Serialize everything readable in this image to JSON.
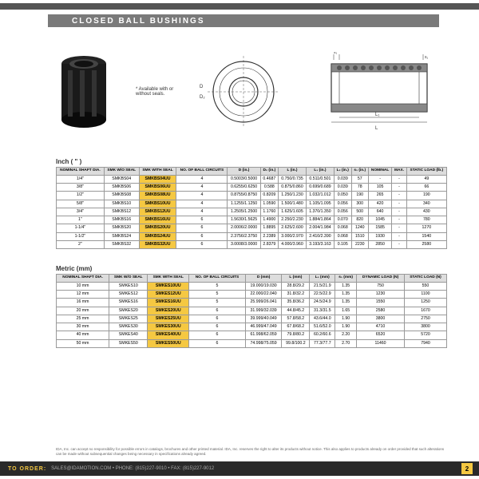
{
  "header": {
    "title": "CLOSED BALL BUSHINGS"
  },
  "note": "* Available with or without seals.",
  "section1": {
    "label": "Inch ( \" )"
  },
  "section2": {
    "label": "Metric (mm)"
  },
  "table1": {
    "headers": [
      "NOMINAL SHAFT DIA.",
      "SMK W/O SEAL",
      "SMK WITH SEAL",
      "NO. OF BALL CIRCUITS",
      "D (in.)",
      "D₂ (in.)",
      "L (in.)",
      "L₁ (in.)",
      "L₂ (in.)",
      "s₁ (in.)",
      "NOMINAL",
      "MAX.",
      "STATIC LOAD (lb.)"
    ],
    "rows": [
      [
        "1/4\"",
        "SMKBS04",
        "SMKBS04UU",
        "4",
        "0.5003/0.5000",
        "0.4687",
        "0.750/0.735",
        "0.511/0.501",
        "0.039",
        "57",
        "-",
        "-",
        "49"
      ],
      [
        "3/8\"",
        "SMKBS06",
        "SMKBS06UU",
        "4",
        "0.6255/0.6250",
        "0.588",
        "0.875/0.860",
        "0.699/0.689",
        "0.039",
        "78",
        "105",
        "-",
        "66"
      ],
      [
        "1/2\"",
        "SMKBS08",
        "SMKBS08UU",
        "4",
        "0.8755/0.8750",
        "0.8209",
        "1.250/1.230",
        "1.032/1.012",
        "0.050",
        "190",
        "265",
        "-",
        "190"
      ],
      [
        "5/8\"",
        "SMKBS10",
        "SMKBS10UU",
        "4",
        "1.1255/1.1250",
        "1.0590",
        "1.500/1.480",
        "1.105/1.095",
        "0.056",
        "300",
        "420",
        "-",
        "340"
      ],
      [
        "3/4\"",
        "SMKBS12",
        "SMKBS12UU",
        "4",
        "1.2505/1.2500",
        "1.1760",
        "1.625/1.605",
        "1.370/1.350",
        "0.056",
        "500",
        "640",
        "-",
        "430"
      ],
      [
        "1\"",
        "SMKBS16",
        "SMKBS16UU",
        "6",
        "1.5630/1.5625",
        "1.4900",
        "2.250/2.230",
        "1.884/1.864",
        "0.070",
        "820",
        "1045",
        "-",
        "780"
      ],
      [
        "1-1/4\"",
        "SMKBS20",
        "SMKBS20UU",
        "6",
        "2.0006/2.0000",
        "1.8895",
        "2.625/2.600",
        "2.004/1.984",
        "0.068",
        "1240",
        "1585",
        "-",
        "1270"
      ],
      [
        "1-1/2\"",
        "SMKBS24",
        "SMKBS24UU",
        "6",
        "2.3756/2.3750",
        "2.2389",
        "3.000/2.970",
        "2.410/2.390",
        "0.068",
        "1510",
        "1930",
        "-",
        "1540"
      ],
      [
        "2\"",
        "SMKBS32",
        "SMKBS32UU",
        "6",
        "3.0008/3.0000",
        "2.8379",
        "4.000/3.960",
        "3.193/3.163",
        "0.105",
        "2230",
        "2850",
        "-",
        "2580"
      ]
    ]
  },
  "table2": {
    "headers": [
      "NOMINAL SHAFT DIA.",
      "SMK W/O SEAL",
      "SMK WITH SEAL",
      "NO. OF BALL CIRCUITS",
      "D (mm)",
      "L (mm)",
      "L₁ (mm)",
      "s₁ (mm)",
      "DYNAMIC LOAD (N)",
      "STATIC LOAD (N)"
    ],
    "rows": [
      [
        "10 mm",
        "SMKES10",
        "SMKES10UU",
        "5",
        "19.000/19.030",
        "28.8/29.2",
        "21.5/21.9",
        "1.35",
        "750",
        "550"
      ],
      [
        "12 mm",
        "SMKES12",
        "SMKES12UU",
        "5",
        "22.000/22.040",
        "31.8/32.2",
        "22.5/22.9",
        "1.35",
        "1230",
        "1100"
      ],
      [
        "16 mm",
        "SMKES16",
        "SMKES16UU",
        "5",
        "25.999/26.041",
        "35.8/36.2",
        "24.5/24.9",
        "1.35",
        "1550",
        "1250"
      ],
      [
        "20 mm",
        "SMKES20",
        "SMKES20UU",
        "6",
        "31.999/32.039",
        "44.8/45.2",
        "31.3/31.5",
        "1.65",
        "2580",
        "1670"
      ],
      [
        "25 mm",
        "SMKES25",
        "SMKES25UU",
        "6",
        "39.999/40.049",
        "57.8/58.2",
        "43.6/44.0",
        "1.90",
        "3800",
        "2750"
      ],
      [
        "30 mm",
        "SMKES30",
        "SMKES30UU",
        "6",
        "46.999/47.049",
        "67.8/68.2",
        "51.6/52.0",
        "1.90",
        "4710",
        "3800"
      ],
      [
        "40 mm",
        "SMKES40",
        "SMKES40UU",
        "6",
        "61.998/62.059",
        "79.8/80.2",
        "60.2/60.6",
        "2.20",
        "6520",
        "5720"
      ],
      [
        "50 mm",
        "SMKES50",
        "SMKES50UU",
        "6",
        "74.998/75.059",
        "99.8/100.2",
        "77.3/77.7",
        "2.70",
        "11460",
        "7940"
      ]
    ]
  },
  "disclaimer": "IDA, Inc. can accept no responsibility for possible errors in catalogs, brochures and other printed material. IDA, Inc. reserves the right to alter its products without notice. This also applies to products already on order provided that such alterations can be made without subsequential changes being necessary in specifications already agreed.",
  "footer": {
    "order": "TO ORDER:",
    "info": "SALES@IDAMOTION.COM • PHONE: (815)227-9010 • FAX: (815)227-9012",
    "page": "2"
  }
}
